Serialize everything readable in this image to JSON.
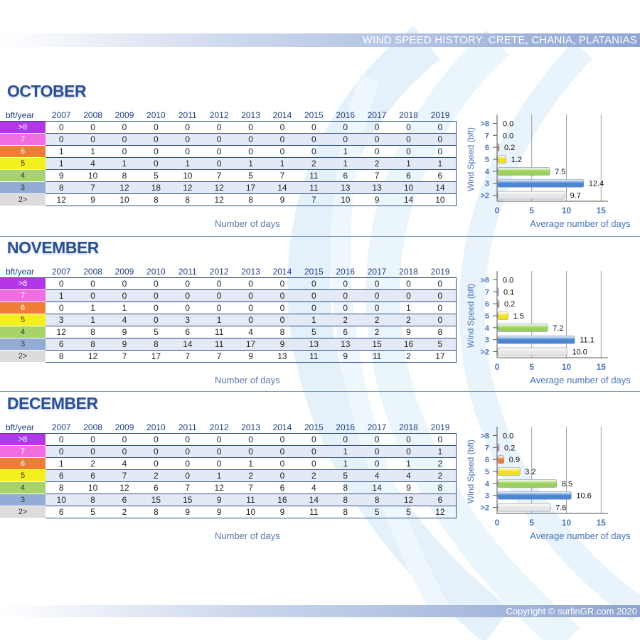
{
  "header": {
    "title": "WIND SPEED HISTORY: CRETE, CHANIA, PLATANIAS"
  },
  "footer": {
    "copyright": "Copyright © surfinGR.com 2020"
  },
  "table_header": "bft/year",
  "years": [
    "2007",
    "2008",
    "2009",
    "2010",
    "2011",
    "2012",
    "2013",
    "2014",
    "2015",
    "2016",
    "2017",
    "2018",
    "2019"
  ],
  "row_labels": [
    ">8",
    "7",
    "6",
    "5",
    "4",
    "3",
    "2>"
  ],
  "row_colors": [
    "#b535e8",
    "#f06ee0",
    "#f07d34",
    "#f4f020",
    "#a6d46b",
    "#93acd6",
    "#dcdcdc"
  ],
  "table_footer": "Number of days",
  "months": [
    {
      "name": "OCTOBER",
      "table": [
        [
          0,
          0,
          0,
          0,
          0,
          0,
          0,
          0,
          0,
          0,
          0,
          0,
          0
        ],
        [
          0,
          0,
          0,
          0,
          0,
          0,
          0,
          0,
          0,
          0,
          0,
          0,
          0
        ],
        [
          1,
          1,
          0,
          0,
          0,
          0,
          0,
          0,
          0,
          1,
          0,
          0,
          0
        ],
        [
          1,
          4,
          1,
          0,
          1,
          0,
          1,
          1,
          2,
          1,
          2,
          1,
          1
        ],
        [
          9,
          10,
          8,
          5,
          10,
          7,
          5,
          7,
          11,
          6,
          7,
          6,
          6
        ],
        [
          8,
          7,
          12,
          18,
          12,
          12,
          17,
          14,
          11,
          13,
          13,
          10,
          14
        ],
        [
          12,
          9,
          10,
          8,
          8,
          12,
          8,
          9,
          7,
          10,
          9,
          14,
          10
        ]
      ]
    },
    {
      "name": "NOVEMBER",
      "table": [
        [
          0,
          0,
          0,
          0,
          0,
          0,
          0,
          0,
          0,
          0,
          0,
          0,
          0
        ],
        [
          1,
          0,
          0,
          0,
          0,
          0,
          0,
          0,
          0,
          0,
          0,
          0,
          0
        ],
        [
          0,
          1,
          1,
          0,
          0,
          0,
          0,
          0,
          0,
          0,
          0,
          1,
          0
        ],
        [
          3,
          1,
          4,
          0,
          3,
          1,
          0,
          0,
          1,
          2,
          2,
          2,
          0
        ],
        [
          12,
          8,
          9,
          5,
          6,
          11,
          4,
          8,
          5,
          6,
          2,
          9,
          8
        ],
        [
          6,
          8,
          9,
          8,
          14,
          11,
          17,
          9,
          13,
          13,
          15,
          16,
          5
        ],
        [
          8,
          12,
          7,
          17,
          7,
          7,
          9,
          13,
          11,
          9,
          11,
          2,
          17
        ]
      ]
    },
    {
      "name": "DECEMBER",
      "table": [
        [
          0,
          0,
          0,
          0,
          0,
          0,
          0,
          0,
          0,
          0,
          0,
          0,
          0
        ],
        [
          0,
          0,
          0,
          0,
          0,
          0,
          0,
          0,
          0,
          1,
          0,
          0,
          1
        ],
        [
          1,
          2,
          4,
          0,
          0,
          0,
          1,
          0,
          0,
          1,
          0,
          1,
          2
        ],
        [
          6,
          6,
          7,
          2,
          0,
          1,
          2,
          0,
          2,
          5,
          4,
          4,
          2
        ],
        [
          8,
          10,
          12,
          6,
          7,
          12,
          7,
          6,
          4,
          8,
          14,
          9,
          8
        ],
        [
          10,
          8,
          6,
          15,
          15,
          9,
          11,
          16,
          14,
          8,
          8,
          12,
          6
        ],
        [
          6,
          5,
          2,
          8,
          9,
          9,
          10,
          9,
          11,
          8,
          5,
          5,
          12
        ]
      ]
    }
  ],
  "chart_data": [
    {
      "type": "bar",
      "orientation": "horizontal",
      "categories": [
        ">8",
        "7",
        "6",
        "5",
        "4",
        "3",
        ">2"
      ],
      "values": [
        0.0,
        0.0,
        0.2,
        1.2,
        7.5,
        12.4,
        9.7
      ],
      "ylabel": "Wind Speed (bft)",
      "xlabel": "Average number of days",
      "xlim": [
        0,
        15
      ],
      "xticks": [
        0,
        5,
        10,
        15
      ],
      "grid": true
    },
    {
      "type": "bar",
      "orientation": "horizontal",
      "categories": [
        ">8",
        "7",
        "6",
        "5",
        "4",
        "3",
        ">2"
      ],
      "values": [
        0.0,
        0.1,
        0.2,
        1.5,
        7.2,
        11.1,
        10.0
      ],
      "ylabel": "Wind Speed (bft)",
      "xlabel": "Average number of days",
      "xlim": [
        0,
        15
      ],
      "xticks": [
        0,
        5,
        10,
        15
      ],
      "grid": true
    },
    {
      "type": "bar",
      "orientation": "horizontal",
      "categories": [
        ">8",
        "7",
        "6",
        "5",
        "4",
        "3",
        ">2"
      ],
      "values": [
        0.0,
        0.2,
        0.9,
        3.2,
        8.5,
        10.6,
        7.6
      ],
      "ylabel": "Wind Speed (bft)",
      "xlabel": "Average number of days",
      "xlim": [
        0,
        15
      ],
      "xticks": [
        0,
        5,
        10,
        15
      ],
      "grid": true
    }
  ]
}
